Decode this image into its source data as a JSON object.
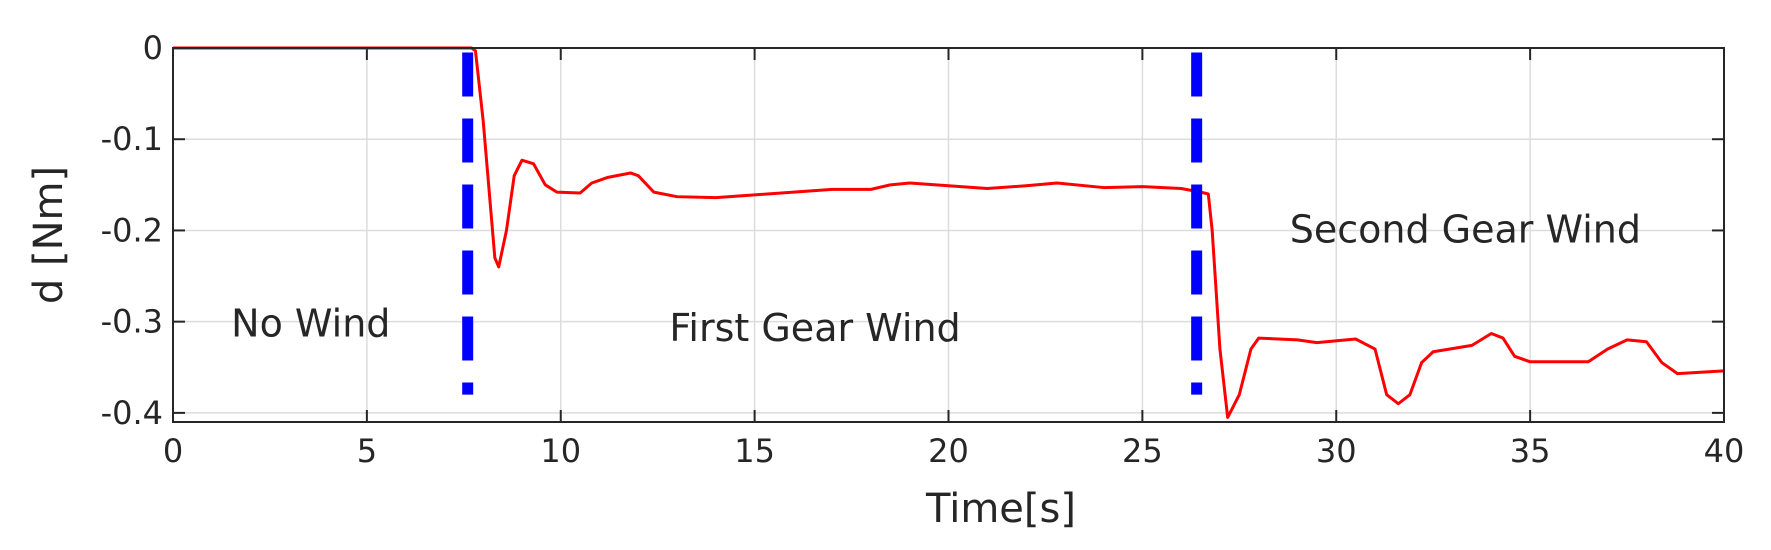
{
  "chart_data": {
    "type": "line",
    "xlabel": "Time[s]",
    "ylabel": "d [Nm]",
    "xlim": [
      0,
      40
    ],
    "ylim": [
      -0.41,
      0
    ],
    "xticks": [
      0,
      5,
      10,
      15,
      20,
      25,
      30,
      35,
      40
    ],
    "yticks": [
      -0.4,
      -0.3,
      -0.2,
      -0.1,
      0
    ],
    "grid": true,
    "series": [
      {
        "color": "#ff0000",
        "x": [
          0,
          7.7,
          7.8,
          8.0,
          8.3,
          8.4,
          8.6,
          8.8,
          9.0,
          9.3,
          9.6,
          9.9,
          10.5,
          10.8,
          11.2,
          11.8,
          12.0,
          12.4,
          13.0,
          14.0,
          15.0,
          17.0,
          18.0,
          18.5,
          19.0,
          20.0,
          21.0,
          22.0,
          22.8,
          24.0,
          25.0,
          26.0,
          26.5,
          26.7,
          26.8,
          27.0,
          27.2,
          27.5,
          27.8,
          28.0,
          29.0,
          29.5,
          30.5,
          31.0,
          31.3,
          31.6,
          31.9,
          32.2,
          32.5,
          33.5,
          34.0,
          34.3,
          34.6,
          35.0,
          36.5,
          37.0,
          37.5,
          38.0,
          38.4,
          38.8,
          40.0
        ],
        "values": [
          0,
          0,
          -0.003,
          -0.08,
          -0.23,
          -0.24,
          -0.2,
          -0.14,
          -0.123,
          -0.127,
          -0.15,
          -0.158,
          -0.159,
          -0.148,
          -0.142,
          -0.137,
          -0.14,
          -0.158,
          -0.163,
          -0.164,
          -0.161,
          -0.155,
          -0.155,
          -0.15,
          -0.148,
          -0.151,
          -0.154,
          -0.151,
          -0.148,
          -0.153,
          -0.152,
          -0.154,
          -0.158,
          -0.16,
          -0.2,
          -0.33,
          -0.405,
          -0.38,
          -0.33,
          -0.318,
          -0.32,
          -0.323,
          -0.319,
          -0.33,
          -0.38,
          -0.39,
          -0.38,
          -0.345,
          -0.333,
          -0.326,
          -0.313,
          -0.318,
          -0.338,
          -0.344,
          -0.344,
          -0.33,
          -0.32,
          -0.322,
          -0.345,
          -0.357,
          -0.354
        ]
      }
    ],
    "vlines": {
      "color": "#0000ff",
      "x": [
        7.6,
        26.4
      ],
      "range": [
        -0.005,
        -0.38
      ]
    },
    "annotations": [
      {
        "text": "No Wind",
        "x": 1.5,
        "y": -0.303
      },
      {
        "text": "First Gear Wind",
        "x": 12.8,
        "y": -0.308
      },
      {
        "text": "Second Gear Wind",
        "x": 28.8,
        "y": -0.2
      }
    ]
  }
}
